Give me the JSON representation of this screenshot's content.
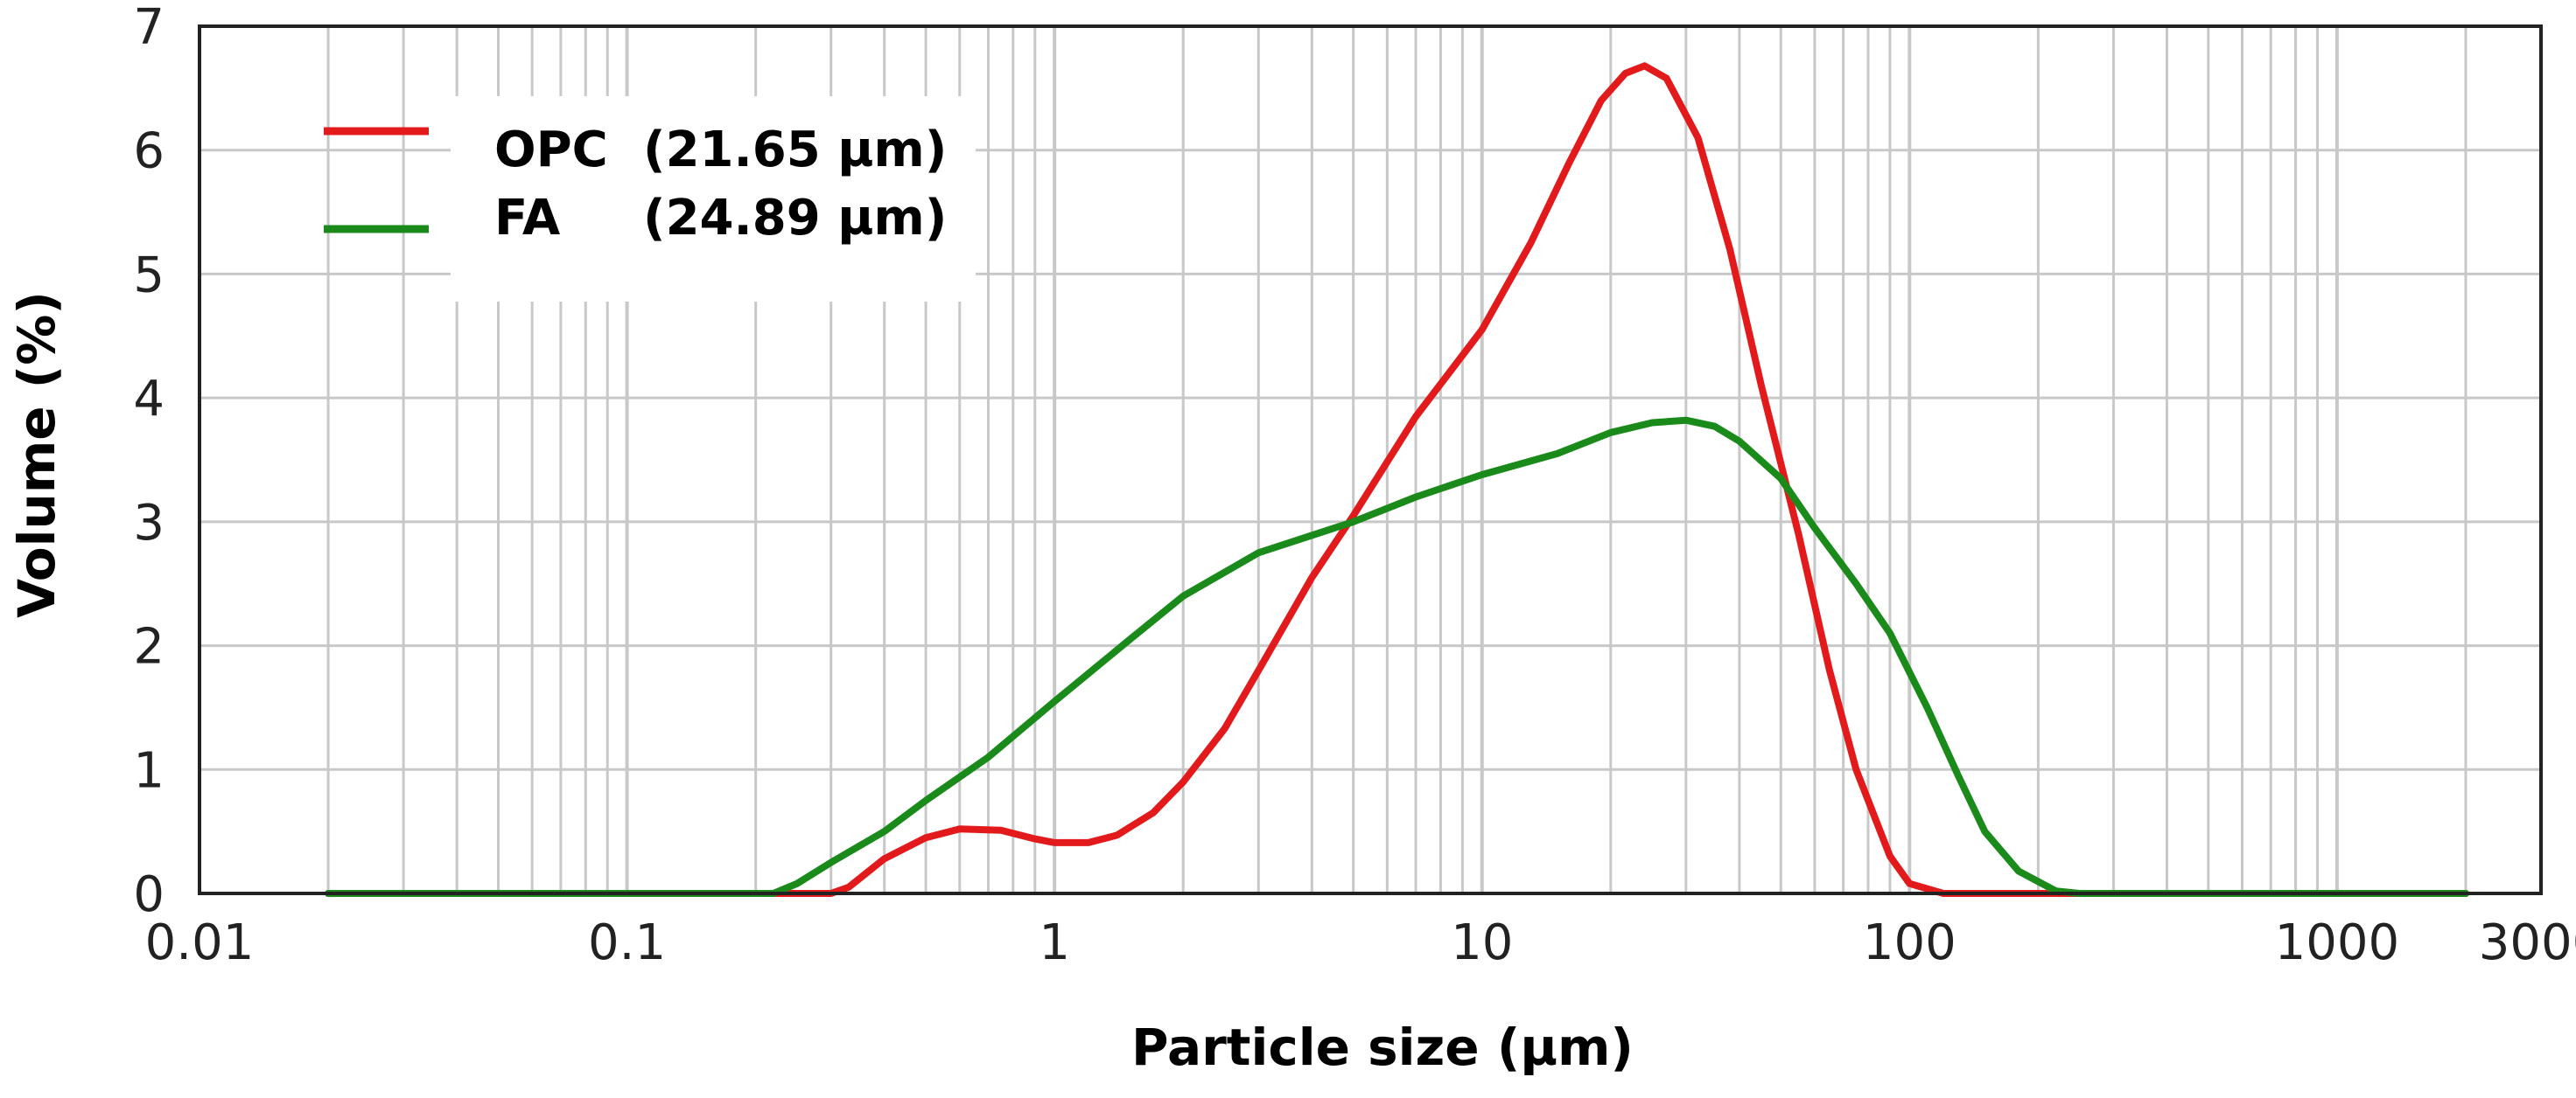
{
  "chart_data": {
    "type": "line",
    "title": "",
    "xlabel": "Particle size   (µm)",
    "ylabel": "Volume   (%)",
    "x_scale": "log",
    "xlim": [
      0.01,
      3000
    ],
    "ylim": [
      0,
      7
    ],
    "grid": true,
    "legend_position": "top-left",
    "x_tick_labels": [
      {
        "value": 0.01,
        "label": "0.01"
      },
      {
        "value": 0.1,
        "label": "0.1"
      },
      {
        "value": 1,
        "label": "1"
      },
      {
        "value": 10,
        "label": "10"
      },
      {
        "value": 100,
        "label": "100"
      },
      {
        "value": 1000,
        "label": "1000"
      },
      {
        "value": 3000,
        "label": "3000"
      }
    ],
    "y_tick_labels": [
      {
        "value": 0,
        "label": "0"
      },
      {
        "value": 1,
        "label": "1"
      },
      {
        "value": 2,
        "label": "2"
      },
      {
        "value": 3,
        "label": "3"
      },
      {
        "value": 4,
        "label": "4"
      },
      {
        "value": 5,
        "label": "5"
      },
      {
        "value": 6,
        "label": "6"
      },
      {
        "value": 7,
        "label": "7"
      }
    ],
    "series": [
      {
        "name": "OPC",
        "legend_name": "OPC",
        "legend_value": "(21.65 µm)",
        "color": "#e31a1c",
        "points": [
          [
            0.02,
            0
          ],
          [
            0.3,
            0
          ],
          [
            0.33,
            0.05
          ],
          [
            0.4,
            0.28
          ],
          [
            0.5,
            0.45
          ],
          [
            0.6,
            0.52
          ],
          [
            0.75,
            0.51
          ],
          [
            0.9,
            0.44
          ],
          [
            1.0,
            0.41
          ],
          [
            1.2,
            0.41
          ],
          [
            1.4,
            0.47
          ],
          [
            1.7,
            0.65
          ],
          [
            2.0,
            0.9
          ],
          [
            2.5,
            1.33
          ],
          [
            3.0,
            1.8
          ],
          [
            4.0,
            2.55
          ],
          [
            5.0,
            3.05
          ],
          [
            7.0,
            3.85
          ],
          [
            10.0,
            4.55
          ],
          [
            13.0,
            5.25
          ],
          [
            16.0,
            5.9
          ],
          [
            19.0,
            6.4
          ],
          [
            21.65,
            6.62
          ],
          [
            24.0,
            6.68
          ],
          [
            27.0,
            6.58
          ],
          [
            32.0,
            6.1
          ],
          [
            38.0,
            5.2
          ],
          [
            45.0,
            4.1
          ],
          [
            55.0,
            2.9
          ],
          [
            65.0,
            1.8
          ],
          [
            75.0,
            1.0
          ],
          [
            90.0,
            0.3
          ],
          [
            100.0,
            0.08
          ],
          [
            120.0,
            0
          ],
          [
            2000,
            0
          ]
        ]
      },
      {
        "name": "FA",
        "legend_name": "FA",
        "legend_value": "(24.89 µm)",
        "color": "#1a8a1a",
        "points": [
          [
            0.02,
            0
          ],
          [
            0.22,
            0
          ],
          [
            0.25,
            0.08
          ],
          [
            0.3,
            0.25
          ],
          [
            0.4,
            0.5
          ],
          [
            0.5,
            0.75
          ],
          [
            0.7,
            1.1
          ],
          [
            1.0,
            1.55
          ],
          [
            1.5,
            2.05
          ],
          [
            2.0,
            2.4
          ],
          [
            3.0,
            2.75
          ],
          [
            5.0,
            3.0
          ],
          [
            7.0,
            3.2
          ],
          [
            10.0,
            3.38
          ],
          [
            15.0,
            3.55
          ],
          [
            20.0,
            3.72
          ],
          [
            25.0,
            3.8
          ],
          [
            30.0,
            3.82
          ],
          [
            35.0,
            3.77
          ],
          [
            40.0,
            3.65
          ],
          [
            50.0,
            3.35
          ],
          [
            60.0,
            2.95
          ],
          [
            75.0,
            2.5
          ],
          [
            90.0,
            2.1
          ],
          [
            110.0,
            1.5
          ],
          [
            130.0,
            0.95
          ],
          [
            150.0,
            0.5
          ],
          [
            180.0,
            0.18
          ],
          [
            220.0,
            0.02
          ],
          [
            250.0,
            0
          ],
          [
            2000,
            0
          ]
        ]
      }
    ]
  }
}
